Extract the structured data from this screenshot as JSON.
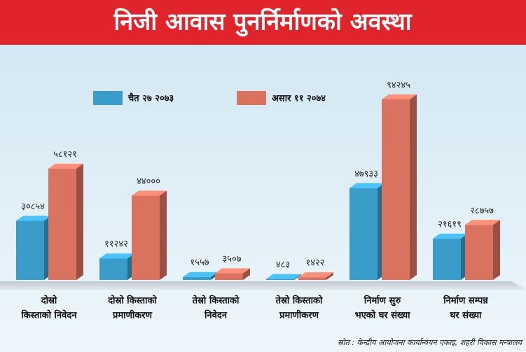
{
  "chart_data": {
    "type": "bar",
    "title": "निजी आवास पुनर्निर्माणको अवस्था",
    "categories": [
      [
        "दोस्रो",
        "किस्ताको निवेदन"
      ],
      [
        "दोस्रो किस्ताको",
        "प्रमाणीकरण"
      ],
      [
        "तेस्रो किस्ताको",
        "निवेदन"
      ],
      [
        "तेस्रो किस्ताको",
        "प्रमाणीकरण"
      ],
      [
        "निर्माण सुरु",
        "भएको घर संख्या"
      ],
      [
        "निर्माण सम्पन्न",
        "घर संख्या"
      ]
    ],
    "series": [
      {
        "name": "चैत २७ २०७३",
        "color": "#3a9cc9",
        "values": [
          30854,
          11242,
          1557,
          483,
          47933,
          21619
        ],
        "value_labels": [
          "३०८५४",
          "११२४२",
          "१५५७",
          "४८३",
          "४७९३३",
          "२१६१९"
        ]
      },
      {
        "name": "असार ११ २०७४",
        "color": "#d9735f",
        "values": [
          58121,
          44000,
          3507,
          1422,
          94245,
          28757
        ],
        "value_labels": [
          "५८१२१",
          "४४०००",
          "३५०७",
          "१४२२",
          "९४२४५",
          "२८७५७"
        ]
      }
    ],
    "source": "स्रोत : केन्द्रीय आयोजना कार्यान्वयन एकाइ, शहरी विकास मन्त्रालय"
  }
}
